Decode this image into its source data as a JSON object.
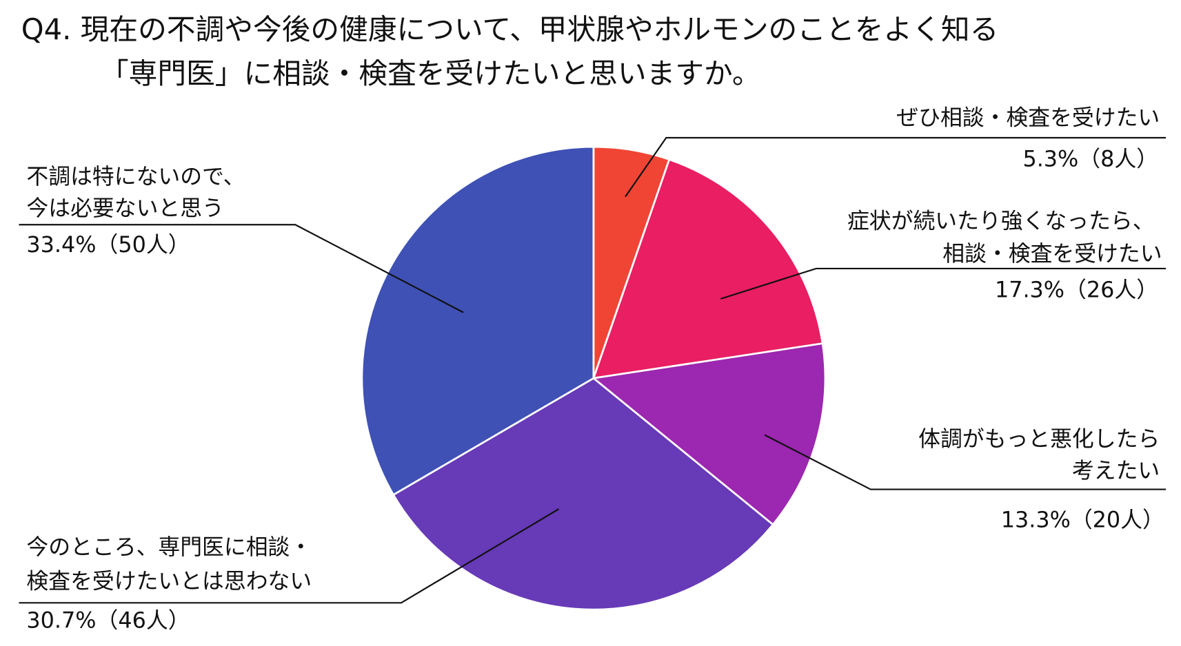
{
  "chart_data": {
    "type": "pie",
    "title": [
      "Q4. 現在の不調や今後の健康について、甲状腺やホルモンのことをよく知る",
      "「専門医」に相談・検査を受けたいと思いますか。"
    ],
    "start": "top",
    "direction": "clockwise",
    "slices": [
      {
        "label": [
          "ぜひ相談・検査を受けたい"
        ],
        "value": 5.3,
        "count": 8,
        "display": "5.3%（8人）",
        "color": "#f04535"
      },
      {
        "label": [
          "症状が続いたり強くなったら、",
          "相談・検査を受けたい"
        ],
        "value": 17.3,
        "count": 26,
        "display": "17.3%（26人）",
        "color": "#e91e63"
      },
      {
        "label": [
          "体調がもっと悪化したら",
          "考えたい"
        ],
        "value": 13.3,
        "count": 20,
        "display": "13.3%（20人）",
        "color": "#9c27b0"
      },
      {
        "label": [
          "今のところ、専門医に相談・",
          "検査を受けたいとは思わない"
        ],
        "value": 30.7,
        "count": 46,
        "display": "30.7%（46人）",
        "color": "#673ab7"
      },
      {
        "label": [
          "不調は特にないので、",
          "今は必要ないと思う"
        ],
        "value": 33.4,
        "count": 50,
        "display": "33.4%（50人）",
        "color": "#3f51b5"
      }
    ]
  }
}
